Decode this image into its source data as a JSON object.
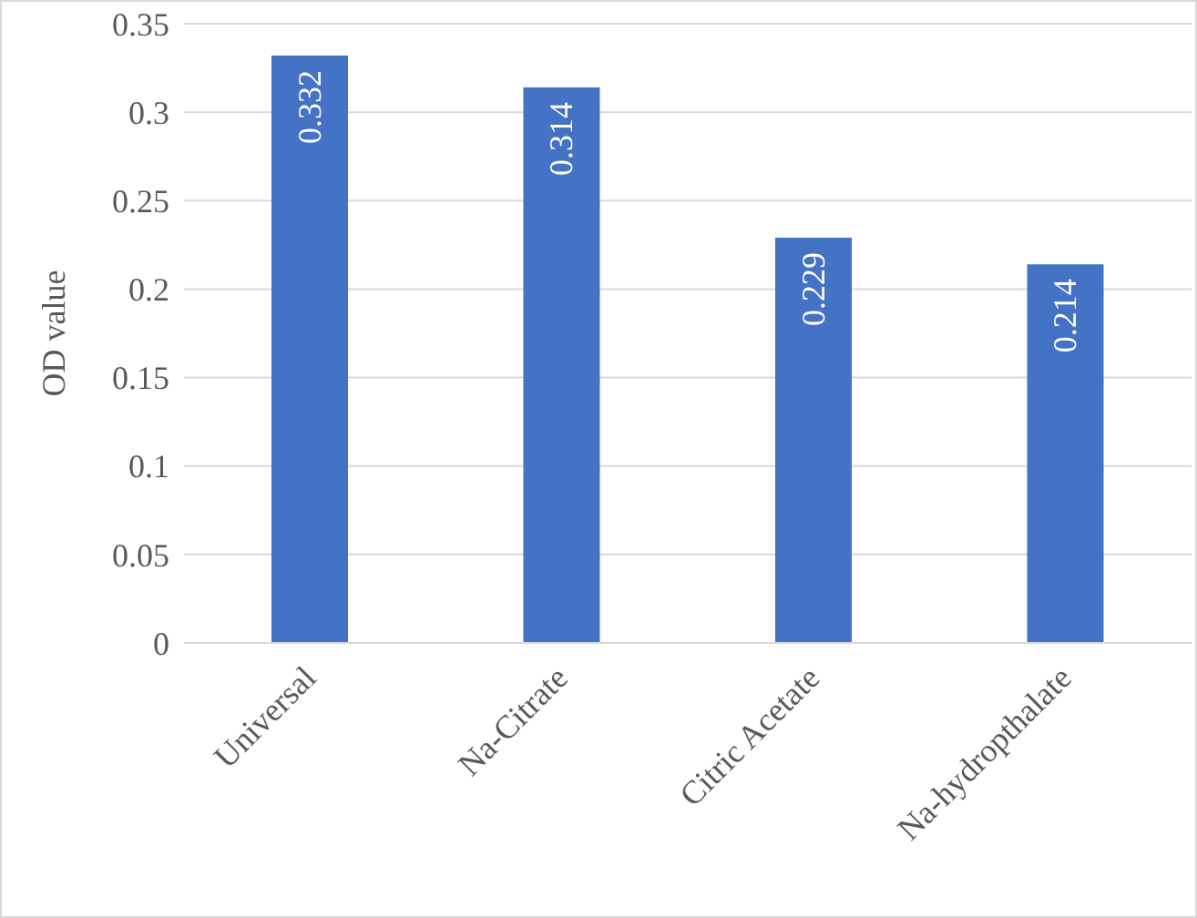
{
  "chart_data": {
    "type": "bar",
    "ylabel": "OD value",
    "categories": [
      "Universal",
      "Na-Citrate",
      "Citric Acetate",
      "Na-hydropthalate"
    ],
    "values": [
      0.332,
      0.314,
      0.229,
      0.214
    ],
    "color": "#4472c4",
    "ylim": [
      0,
      0.35
    ],
    "yticks": [
      0,
      0.05,
      0.1,
      0.15,
      0.2,
      0.25,
      0.3,
      0.35
    ],
    "grid": "y",
    "data_labels": true
  }
}
